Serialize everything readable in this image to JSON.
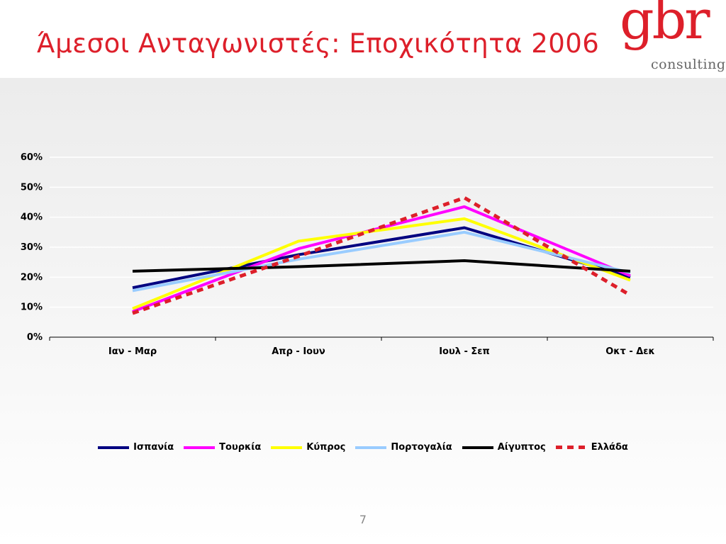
{
  "slide": {
    "title": "Άμεσοι Ανταγωνιστές: Εποχικότητα 2006",
    "page_number": "7"
  },
  "logo": {
    "word": "gbr",
    "sub": "consulting"
  },
  "colors": {
    "title": "#dd1f2a",
    "brand": "#dd1f2a"
  },
  "chart_data": {
    "type": "line",
    "categories": [
      "Ιαν - Μαρ",
      "Απρ - Ιουν",
      "Ιουλ - Σεπ",
      "Οκτ - Δεκ"
    ],
    "y_ticks": [
      "0%",
      "10%",
      "20%",
      "30%",
      "40%",
      "50%",
      "60%"
    ],
    "ylim": [
      0,
      60
    ],
    "grid": true,
    "legend_position": "bottom",
    "series": [
      {
        "name": "Ισπανία",
        "values": [
          16.5,
          27.5,
          36.5,
          20
        ],
        "color": "#000080",
        "dashed": false
      },
      {
        "name": "Τουρκία",
        "values": [
          8.5,
          29.5,
          43.5,
          20.5
        ],
        "color": "#ff00ff",
        "dashed": false
      },
      {
        "name": "Κύπρος",
        "values": [
          9.5,
          32,
          39.5,
          19
        ],
        "color": "#ffff00",
        "dashed": false
      },
      {
        "name": "Πορτογαλία",
        "values": [
          15.5,
          26,
          35,
          21.5
        ],
        "color": "#99ccff",
        "dashed": false
      },
      {
        "name": "Αίγυπτος",
        "values": [
          22,
          23.5,
          25.5,
          22
        ],
        "color": "#000000",
        "dashed": false
      },
      {
        "name": "Ελλάδα",
        "values": [
          8,
          27,
          46.5,
          14
        ],
        "color": "#dd1f2a",
        "dashed": true
      }
    ]
  }
}
